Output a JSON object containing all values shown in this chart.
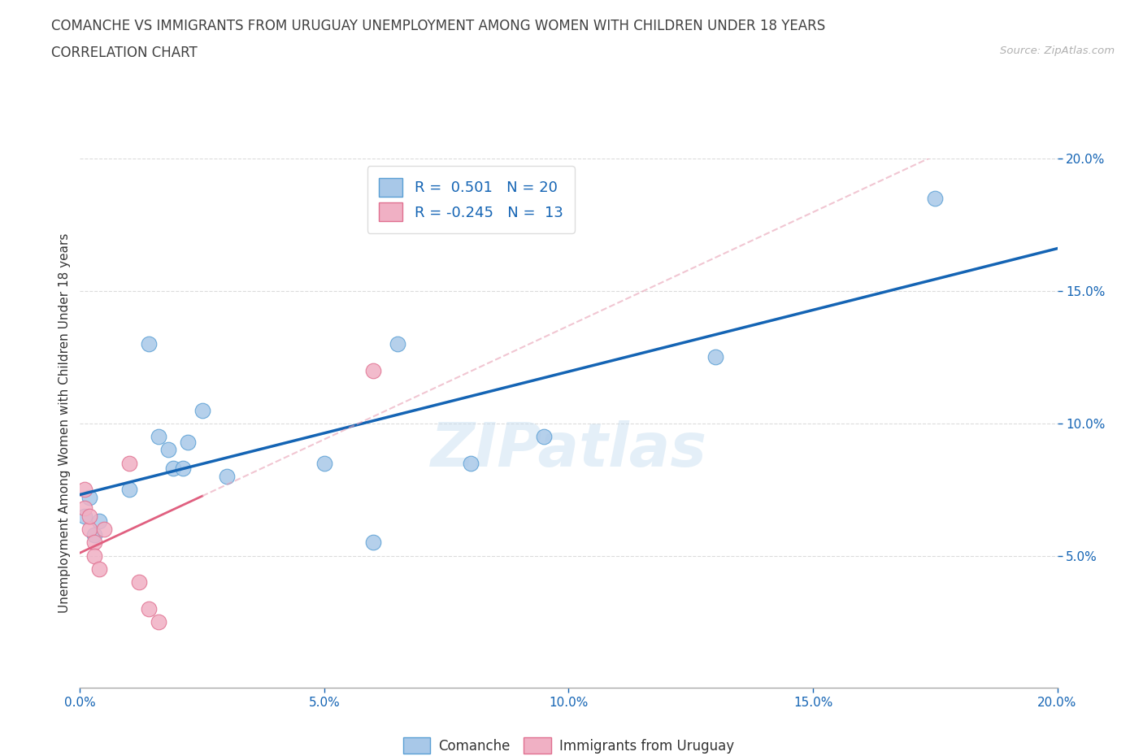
{
  "title_line1": "COMANCHE VS IMMIGRANTS FROM URUGUAY UNEMPLOYMENT AMONG WOMEN WITH CHILDREN UNDER 18 YEARS",
  "title_line2": "CORRELATION CHART",
  "source": "Source: ZipAtlas.com",
  "ylabel": "Unemployment Among Women with Children Under 18 years",
  "xlim": [
    0.0,
    0.2
  ],
  "ylim": [
    0.0,
    0.2
  ],
  "xticks": [
    0.0,
    0.05,
    0.1,
    0.15,
    0.2
  ],
  "yticks": [
    0.05,
    0.1,
    0.15,
    0.2
  ],
  "comanche_x": [
    0.001,
    0.002,
    0.003,
    0.004,
    0.014,
    0.016,
    0.018,
    0.019,
    0.021,
    0.022,
    0.03,
    0.05,
    0.06,
    0.065,
    0.08,
    0.095,
    0.13,
    0.175,
    0.01,
    0.025
  ],
  "comanche_y": [
    0.065,
    0.072,
    0.058,
    0.063,
    0.13,
    0.095,
    0.09,
    0.083,
    0.083,
    0.093,
    0.08,
    0.085,
    0.055,
    0.13,
    0.085,
    0.095,
    0.125,
    0.185,
    0.075,
    0.105
  ],
  "uruguay_x": [
    0.001,
    0.001,
    0.002,
    0.002,
    0.003,
    0.003,
    0.004,
    0.005,
    0.01,
    0.012,
    0.014,
    0.016,
    0.06
  ],
  "uruguay_y": [
    0.075,
    0.068,
    0.06,
    0.065,
    0.055,
    0.05,
    0.045,
    0.06,
    0.085,
    0.04,
    0.03,
    0.025,
    0.12
  ],
  "comanche_color": "#a8c8e8",
  "comanche_edge": "#5a9fd4",
  "uruguay_color": "#f0b0c4",
  "uruguay_edge": "#e07090",
  "regression_blue": "#1464b4",
  "regression_pink": "#e06080",
  "regression_pink_dash": "#e8a0b4",
  "R_comanche": 0.501,
  "N_comanche": 20,
  "R_uruguay": -0.245,
  "N_uruguay": 13,
  "watermark": "ZIPatlas",
  "bg_color": "#ffffff",
  "grid_color": "#cccccc",
  "title_color": "#404040",
  "label_color": "#333333",
  "axis_label_color": "#1464b4",
  "source_color": "#b0b0b0"
}
